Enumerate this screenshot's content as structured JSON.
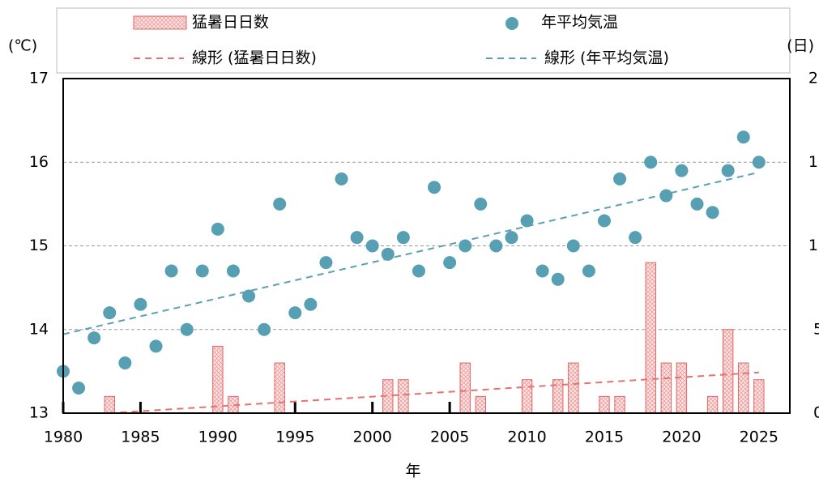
{
  "chart_data": {
    "type": "bar+scatter",
    "y_unit_label": "(℃)",
    "y2_unit_label": "(日)",
    "xlabel": "年",
    "x": [
      1980,
      1981,
      1982,
      1983,
      1984,
      1985,
      1986,
      1987,
      1988,
      1989,
      1990,
      1991,
      1992,
      1993,
      1994,
      1995,
      1996,
      1997,
      1998,
      1999,
      2000,
      2001,
      2002,
      2003,
      2004,
      2005,
      2006,
      2007,
      2008,
      2009,
      2010,
      2011,
      2012,
      2013,
      2014,
      2015,
      2016,
      2017,
      2018,
      2019,
      2020,
      2021,
      2022,
      2023,
      2024,
      2025
    ],
    "xlim": [
      1980,
      2027
    ],
    "xticks": [
      1980,
      1985,
      1990,
      1995,
      2000,
      2005,
      2010,
      2015,
      2020,
      2025
    ],
    "ylim": [
      13,
      17
    ],
    "yticks": [
      13,
      14,
      15,
      16,
      17
    ],
    "y2lim": [
      0,
      20
    ],
    "y2ticks": [
      0,
      5,
      10,
      15,
      20
    ],
    "grid": true,
    "series": [
      {
        "name": "猛暑日日数",
        "type": "bar",
        "axis": "y2",
        "color": "#e06666",
        "values": [
          0,
          0,
          0,
          1,
          0,
          0,
          0,
          0,
          0,
          0,
          4,
          1,
          0,
          0,
          3,
          0,
          0,
          0,
          0,
          0,
          0,
          2,
          2,
          0,
          0,
          0,
          3,
          1,
          0,
          0,
          2,
          0,
          2,
          3,
          0,
          1,
          1,
          0,
          9,
          3,
          3,
          0,
          1,
          5,
          3,
          2
        ],
        "trendline": {
          "name": "線形 (猛暑日日数)",
          "color": "#e87070"
        }
      },
      {
        "name": "年平均気温",
        "type": "scatter",
        "axis": "y",
        "color": "#579fb2",
        "values": [
          13.5,
          13.3,
          13.9,
          14.2,
          13.6,
          14.3,
          13.8,
          14.7,
          14.0,
          14.7,
          15.2,
          14.7,
          14.4,
          14.0,
          15.5,
          14.2,
          14.3,
          14.8,
          15.8,
          15.1,
          15.0,
          14.9,
          15.1,
          14.7,
          15.7,
          14.8,
          15.0,
          15.5,
          15.0,
          15.1,
          15.3,
          14.7,
          14.6,
          15.0,
          14.7,
          15.3,
          15.8,
          15.1,
          16.0,
          15.6,
          15.9,
          15.5,
          15.4,
          15.9,
          16.3,
          16.0
        ],
        "trendline": {
          "name": "線形 (年平均気温)",
          "color": "#5aa0b5"
        }
      }
    ]
  }
}
